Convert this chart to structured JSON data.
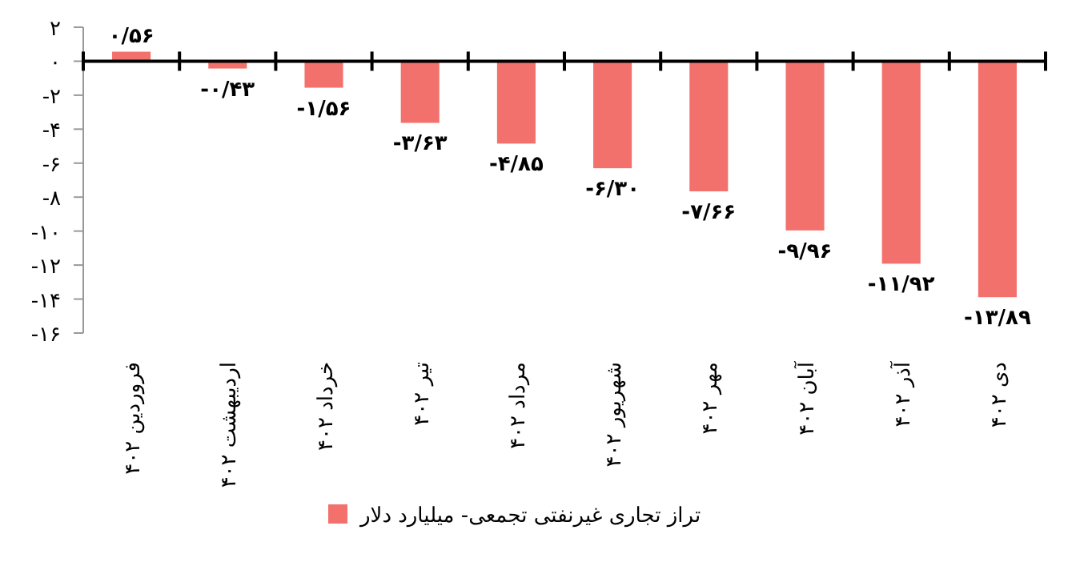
{
  "chart_data": {
    "type": "bar",
    "categories": [
      "فروردین ۴۰۲",
      "اردیبهشت ۴۰۲",
      "خرداد ۴۰۲",
      "تیر ۴۰۲",
      "مرداد ۴۰۲",
      "شهریور ۴۰۲",
      "مهر ۴۰۲",
      "آبان ۴۰۲",
      "آذر ۴۰۲",
      "دی ۴۰۲"
    ],
    "series": [
      {
        "name": "تراز تجاری غیرنفتی تجمعی- میلیارد دلار",
        "color": "#f2716c",
        "values": [
          0.56,
          -0.43,
          -1.56,
          -3.63,
          -4.85,
          -6.3,
          -7.66,
          -9.96,
          -11.92,
          -13.89
        ],
        "value_labels": [
          "۰/۵۶",
          "-۰/۴۳",
          "-۱/۵۶",
          "-۳/۶۳",
          "-۴/۸۵",
          "-۶/۳۰",
          "-۷/۶۶",
          "-۹/۹۶",
          "-۱۱/۹۲",
          "-۱۳/۸۹"
        ]
      }
    ],
    "ylim": [
      -16,
      2
    ],
    "yticks": [
      {
        "value": 2,
        "label": "۲"
      },
      {
        "value": 0,
        "label": "۰"
      },
      {
        "value": -2,
        "label": "-۲"
      },
      {
        "value": -4,
        "label": "-۴"
      },
      {
        "value": -6,
        "label": "-۶"
      },
      {
        "value": -8,
        "label": "-۸"
      },
      {
        "value": -10,
        "label": "-۱۰"
      },
      {
        "value": -12,
        "label": "-۱۲"
      },
      {
        "value": -14,
        "label": "-۱۴"
      },
      {
        "value": -16,
        "label": "-۱۶"
      }
    ],
    "legend": "bottom"
  }
}
